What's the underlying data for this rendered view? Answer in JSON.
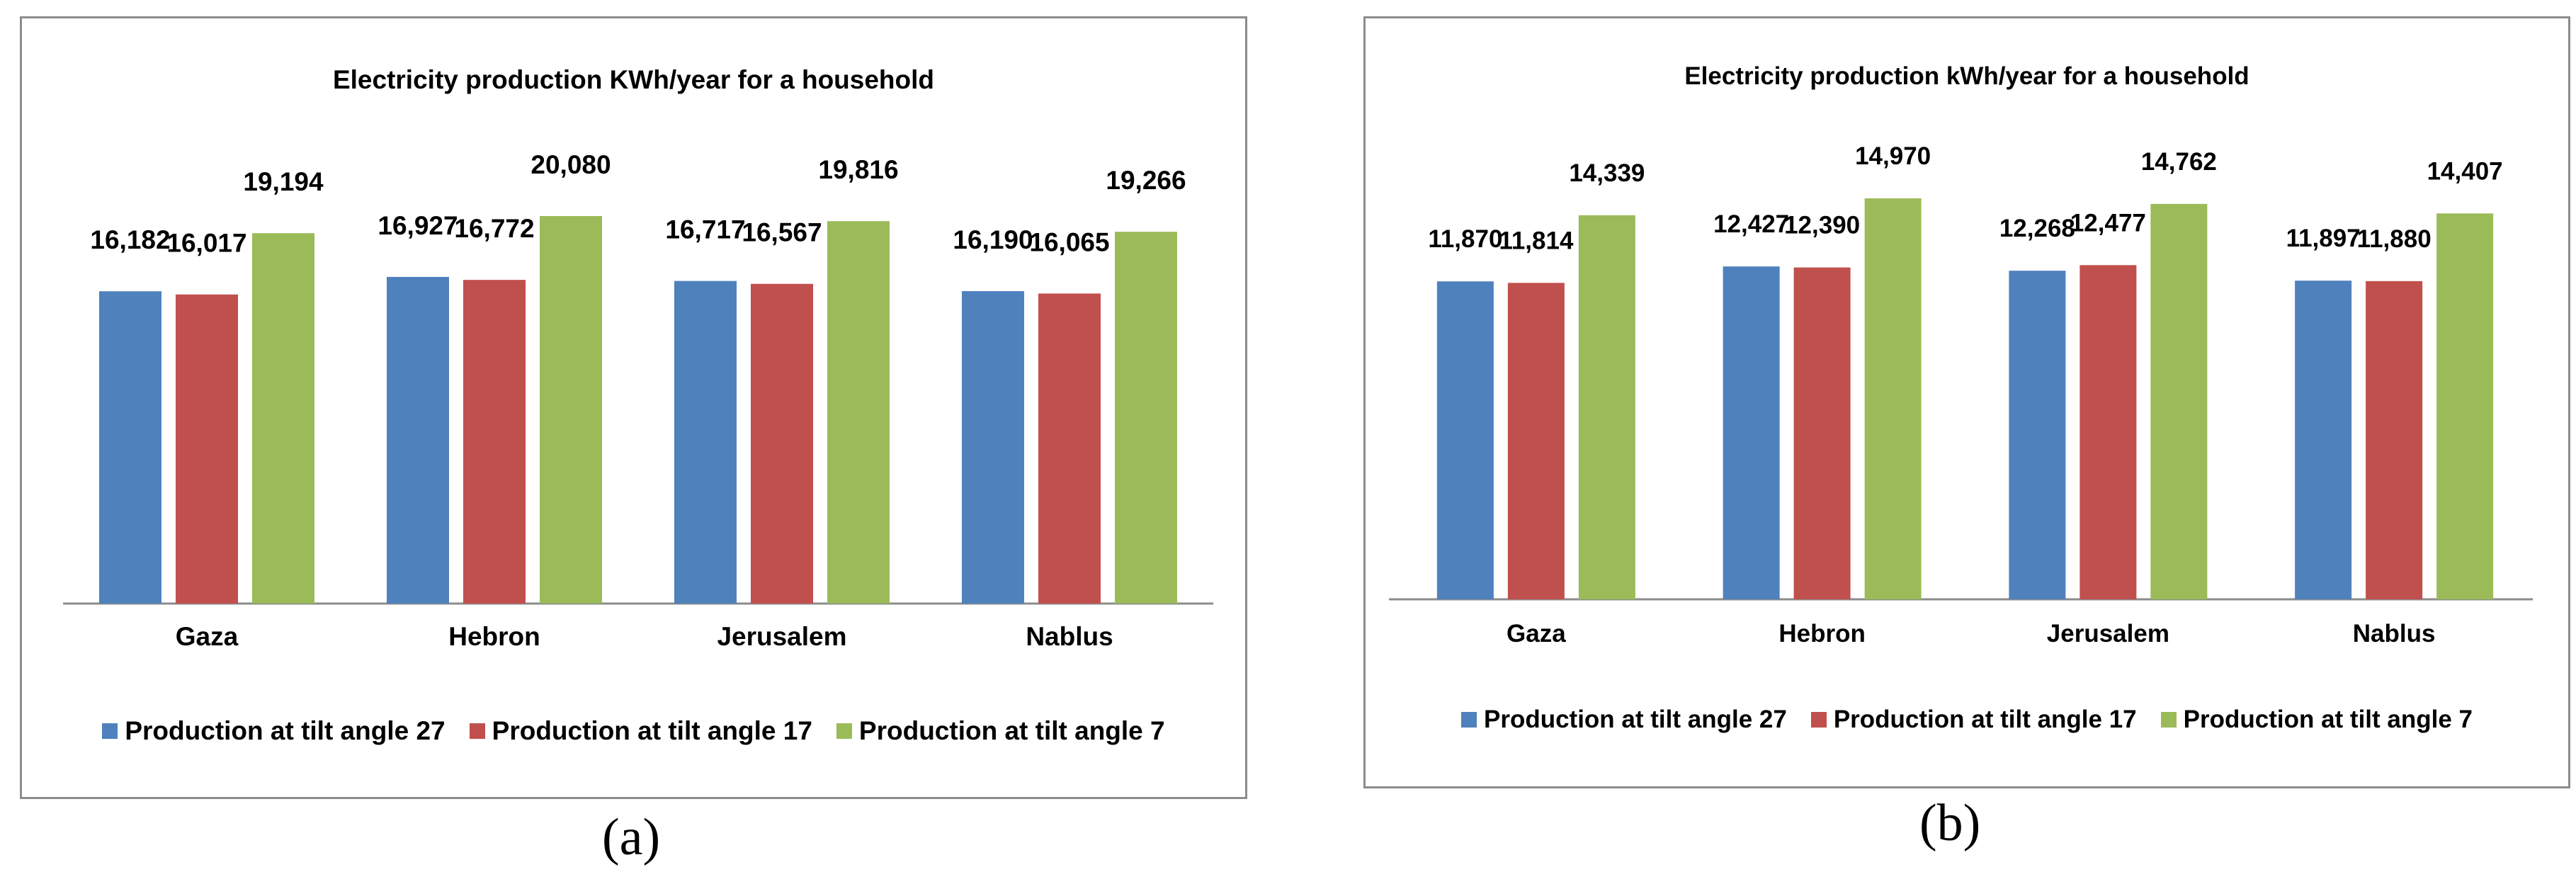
{
  "chart_data": [
    {
      "type": "bar",
      "panel_label": "(a)",
      "title": "Electricity production  KWh/year for a household",
      "categories": [
        "Gaza",
        "Hebron",
        "Jerusalem",
        "Nablus"
      ],
      "series": [
        {
          "name": "Production at tilt angle 27",
          "color": "#4f81bd",
          "values": [
            16182,
            16927,
            16717,
            16190
          ],
          "labels": [
            "16,182",
            "16,927",
            "16,717",
            "16,190"
          ]
        },
        {
          "name": "Production at tilt angle 17",
          "color": "#c0504d",
          "values": [
            16017,
            16772,
            16567,
            16065
          ],
          "labels": [
            "16,017",
            "16,772",
            "16,567",
            "16,065"
          ]
        },
        {
          "name": "Production at tilt angle 7",
          "color": "#9bbb59",
          "values": [
            19194,
            20080,
            19816,
            19266
          ],
          "labels": [
            "19,194",
            "20,080",
            "19,816",
            "19,266"
          ]
        }
      ],
      "ylim": [
        0,
        20080
      ],
      "xlabel": "",
      "ylabel": "",
      "grid": false,
      "legend": "bottom"
    },
    {
      "type": "bar",
      "panel_label": "(b)",
      "title": "Electricity production  kWh/year for a household",
      "categories": [
        "Gaza",
        "Hebron",
        "Jerusalem",
        "Nablus"
      ],
      "series": [
        {
          "name": "Production at tilt angle 27",
          "color": "#4f81bd",
          "values": [
            11870,
            12427,
            12268,
            11897
          ],
          "labels": [
            "11,870",
            "12,427",
            "12,268",
            "11,897"
          ]
        },
        {
          "name": "Production at tilt angle 17",
          "color": "#c0504d",
          "values": [
            11814,
            12390,
            12477,
            11880
          ],
          "labels": [
            "11,814",
            "12,390",
            "12,477",
            "11,880"
          ]
        },
        {
          "name": "Production at tilt angle 7",
          "color": "#9bbb59",
          "values": [
            14339,
            14970,
            14762,
            14407
          ],
          "labels": [
            "14,339",
            "14,970",
            "14,762",
            "14,407"
          ]
        }
      ],
      "ylim": [
        0,
        14970
      ],
      "xlabel": "",
      "ylabel": "",
      "grid": false,
      "legend": "bottom"
    }
  ]
}
